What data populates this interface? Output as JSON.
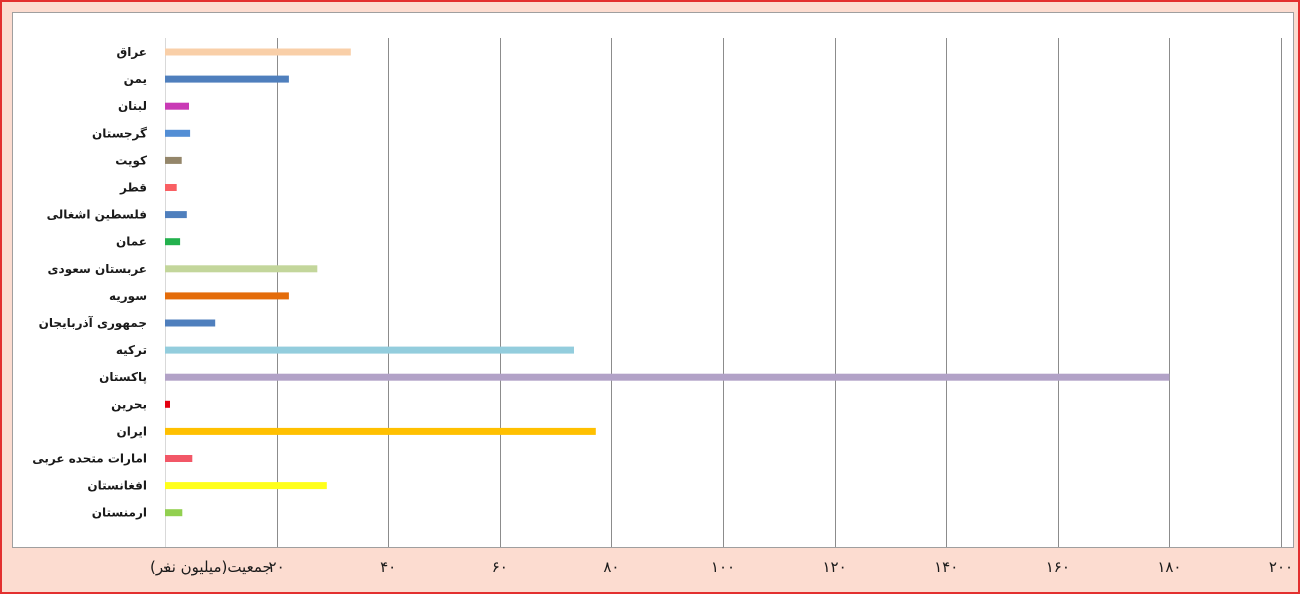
{
  "chart_data": {
    "type": "bar",
    "orientation": "horizontal",
    "title": "",
    "xlabel": "جمعیت(میلیون نفر)",
    "ylabel": "",
    "xlim": [
      0,
      200
    ],
    "grid": true,
    "legend": "none",
    "tick_labels": [
      "۰",
      "۲۰",
      "۴۰",
      "۶۰",
      "۸۰",
      "۱۰۰",
      "۱۲۰",
      "۱۴۰",
      "۱۶۰",
      "۱۸۰",
      "۲۰۰"
    ],
    "tick_values": [
      0,
      20,
      40,
      60,
      80,
      100,
      120,
      140,
      160,
      180,
      200
    ],
    "categories": [
      "عراق",
      "یمن",
      "لبنان",
      "گرجستان",
      "کویت",
      "قطر",
      "فلسطین اشغالی",
      "عمان",
      "عربستان سعودی",
      "سوریه",
      "جمهوری آذربایجان",
      "ترکیه",
      "پاکستان",
      "بحرین",
      "ایران",
      "امارات متحده عربی",
      "افغانستان",
      "ارمنستان"
    ],
    "values": [
      33.3,
      22.2,
      4.3,
      4.5,
      3.0,
      2.1,
      3.9,
      2.7,
      27.3,
      22.2,
      9.0,
      73.3,
      180,
      0.9,
      77.2,
      4.9,
      29.0,
      3.1
    ],
    "colors": [
      "#f9cfa8",
      "#4f7fbd",
      "#c93ab5",
      "#538ed5",
      "#94866a",
      "#f95f63",
      "#4f7fbd",
      "#23b14d",
      "#c3d69b",
      "#e46c0a",
      "#4f7fbd",
      "#93cddd",
      "#b2a2c7",
      "#e3000f",
      "#ffc000",
      "#f25767",
      "#ffff1a",
      "#92d050"
    ]
  }
}
